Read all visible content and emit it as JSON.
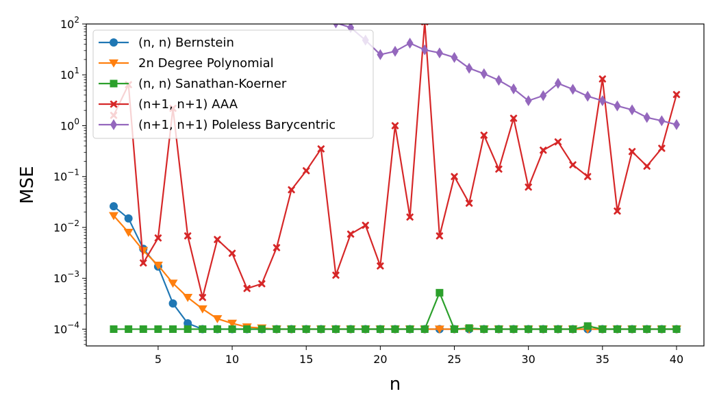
{
  "chart_data": {
    "type": "line",
    "title": "",
    "xlabel": "n",
    "ylabel": "MSE",
    "xlim": [
      0.15,
      41.85
    ],
    "ylim_log10": [
      -4.33,
      2
    ],
    "yscale": "log",
    "grid": false,
    "legend_position": "top-left",
    "x_ticks": [
      5,
      10,
      15,
      20,
      25,
      30,
      35,
      40
    ],
    "y_ticks": [
      {
        "exp": -4,
        "base": "10",
        "sup": "−4"
      },
      {
        "exp": -3,
        "base": "10",
        "sup": "−3"
      },
      {
        "exp": -2,
        "base": "10",
        "sup": "−2"
      },
      {
        "exp": -1,
        "base": "10",
        "sup": "−1"
      },
      {
        "exp": 0,
        "base": "10",
        "sup": "0"
      },
      {
        "exp": 1,
        "base": "10",
        "sup": "1"
      },
      {
        "exp": 2,
        "base": "10",
        "sup": "2"
      }
    ],
    "series": [
      {
        "name": "(n, n) Bernstein",
        "color": "#1f77b4",
        "marker": "circle",
        "x": [
          2,
          3,
          4,
          5,
          6,
          7,
          8,
          9,
          10,
          11,
          12,
          13,
          14,
          15,
          16,
          17,
          18,
          19,
          20,
          21,
          22,
          23,
          24,
          25,
          26,
          27,
          28,
          29,
          30,
          31,
          32,
          33,
          34,
          35,
          36,
          37,
          38,
          39,
          40
        ],
        "y": [
          0.026,
          0.015,
          0.0038,
          0.0017,
          0.00032,
          0.00013,
          0.0001,
          0.0001,
          0.0001,
          0.0001,
          0.0001,
          0.0001,
          0.0001,
          0.0001,
          0.0001,
          0.0001,
          0.0001,
          0.0001,
          0.0001,
          0.0001,
          0.0001,
          0.0001,
          0.0001,
          0.0001,
          0.0001,
          0.0001,
          0.0001,
          0.0001,
          0.0001,
          0.0001,
          0.0001,
          0.0001,
          0.0001,
          0.0001,
          0.0001,
          0.0001,
          0.0001,
          0.0001,
          0.0001
        ]
      },
      {
        "name": "2n Degree Polynomial",
        "color": "#ff7f0e",
        "marker": "triangle-down",
        "x": [
          2,
          3,
          4,
          5,
          6,
          7,
          8,
          9,
          10,
          11,
          12,
          13,
          14,
          15,
          16,
          17,
          18,
          19,
          20,
          21,
          22,
          23,
          24,
          25,
          26,
          27,
          28,
          29,
          30,
          31,
          32,
          33,
          34,
          35,
          36,
          37,
          38,
          39,
          40
        ],
        "y": [
          0.017,
          0.008,
          0.0035,
          0.0018,
          0.0008,
          0.00042,
          0.00025,
          0.00016,
          0.00013,
          0.00011,
          0.000105,
          0.0001,
          0.0001,
          0.0001,
          0.0001,
          0.0001,
          0.0001,
          0.0001,
          0.0001,
          0.0001,
          0.0001,
          0.0001,
          0.0001,
          0.0001,
          0.0001,
          0.0001,
          0.0001,
          0.0001,
          0.0001,
          0.0001,
          0.0001,
          0.0001,
          0.0001,
          0.0001,
          0.0001,
          0.0001,
          0.0001,
          0.0001,
          0.0001
        ]
      },
      {
        "name": "(n, n) Sanathan-Koerner",
        "color": "#2ca02c",
        "marker": "square",
        "x": [
          2,
          3,
          4,
          5,
          6,
          7,
          8,
          9,
          10,
          11,
          12,
          13,
          14,
          15,
          16,
          17,
          18,
          19,
          20,
          21,
          22,
          23,
          24,
          25,
          26,
          27,
          28,
          29,
          30,
          31,
          32,
          33,
          34,
          35,
          36,
          37,
          38,
          39,
          40
        ],
        "y": [
          0.0001,
          0.0001,
          0.0001,
          0.0001,
          0.0001,
          0.0001,
          0.0001,
          0.0001,
          0.0001,
          0.0001,
          0.0001,
          0.0001,
          0.0001,
          0.0001,
          0.0001,
          0.0001,
          0.0001,
          0.0001,
          0.0001,
          0.0001,
          0.0001,
          0.0001,
          0.00052,
          0.0001,
          0.000105,
          0.0001,
          0.0001,
          0.0001,
          0.0001,
          0.0001,
          0.0001,
          0.0001,
          0.000115,
          0.0001,
          0.0001,
          0.0001,
          0.0001,
          0.0001,
          0.0001
        ]
      },
      {
        "name": "(n+1, n+1) AAA",
        "color": "#d62728",
        "marker": "x-filled",
        "x": [
          2,
          3,
          4,
          5,
          6,
          7,
          8,
          9,
          10,
          11,
          12,
          13,
          14,
          15,
          16,
          17,
          18,
          19,
          20,
          21,
          22,
          23,
          24,
          25,
          26,
          27,
          28,
          29,
          30,
          31,
          32,
          33,
          34,
          35,
          36,
          37,
          38,
          39,
          40
        ],
        "y": [
          1.6,
          6.4,
          0.002,
          0.0062,
          2.2,
          0.0068,
          0.00042,
          0.0058,
          0.0031,
          0.00063,
          0.00078,
          0.004,
          0.055,
          0.13,
          0.35,
          0.00115,
          0.0074,
          0.011,
          0.00175,
          1.0,
          0.016,
          110,
          0.0068,
          0.1,
          0.03,
          0.65,
          0.14,
          1.4,
          0.062,
          0.33,
          0.48,
          0.17,
          0.1,
          8.3,
          0.021,
          0.31,
          0.16,
          0.36,
          4.1
        ]
      },
      {
        "name": "(n+1, n+1) Poleless Barycentric",
        "color": "#9467bd",
        "marker": "thin-diamond",
        "x": [
          17,
          18,
          19,
          20,
          21,
          22,
          23,
          24,
          25,
          26,
          27,
          28,
          29,
          30,
          31,
          32,
          33,
          34,
          35,
          36,
          37,
          38,
          39,
          40
        ],
        "y": [
          105,
          85,
          48,
          25,
          29,
          42,
          31,
          27,
          22,
          13.5,
          10.5,
          7.8,
          5.3,
          3.1,
          3.9,
          6.8,
          5.2,
          3.8,
          3.1,
          2.45,
          2.05,
          1.45,
          1.25,
          1.05
        ]
      }
    ]
  }
}
